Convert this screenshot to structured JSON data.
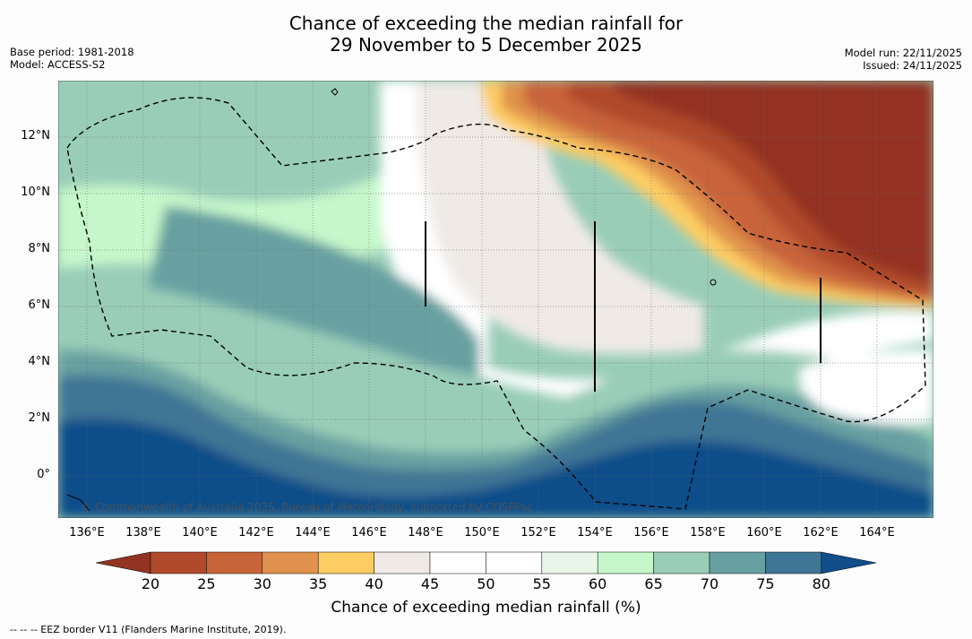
{
  "header": {
    "title_line1": "Chance of exceeding the median rainfall for",
    "title_line2": "29 November to 5 December 2025",
    "base_period": "Base period: 1981-2018",
    "model": "Model: ACCESS-S2",
    "model_run": "Model run: 22/11/2025",
    "issued": "Issued: 24/11/2025"
  },
  "map": {
    "lat_labels": [
      "12°N",
      "10°N",
      "8°N",
      "6°N",
      "4°N",
      "2°N",
      "0°"
    ],
    "lon_labels": [
      "136°E",
      "138°E",
      "140°E",
      "142°E",
      "144°E",
      "146°E",
      "148°E",
      "150°E",
      "152°E",
      "154°E",
      "156°E",
      "158°E",
      "160°E",
      "162°E",
      "164°E"
    ],
    "copyright": "© Commonwealth of Australia 2025, Bureau of Meteorology, supported by COSPPac"
  },
  "colorbar": {
    "title": "Chance of exceeding median rainfall (%)",
    "ticks": [
      "20",
      "25",
      "30",
      "35",
      "40",
      "45",
      "50",
      "55",
      "60",
      "65",
      "70",
      "75",
      "80"
    ],
    "colors": [
      "#933321",
      "#b04a2a",
      "#c8643a",
      "#e0924c",
      "#fdcc63",
      "#efeae6",
      "#ffffff",
      "#ffffff",
      "#e8f5e9",
      "#c6f7cb",
      "#99cdb8",
      "#68a0a1",
      "#3f7695",
      "#104d89"
    ]
  },
  "footnote": "--  --  -- EEZ border V11 (Flanders Marine Institute, 2019)."
}
